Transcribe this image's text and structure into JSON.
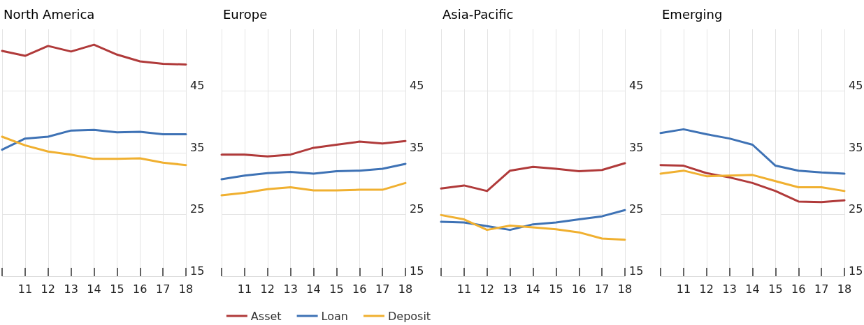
{
  "chart_data": [
    {
      "type": "line",
      "title": "North America",
      "categories": [
        null,
        "11",
        "12",
        "13",
        "14",
        "15",
        "16",
        "17",
        "18"
      ],
      "ylim": [
        15,
        55
      ],
      "yticks": [
        15,
        25,
        35,
        45
      ],
      "grid": true,
      "legend": false,
      "marker": "none",
      "line_style": "solid",
      "series": [
        {
          "color": "#b03a3a",
          "values": [
            51.5,
            50.7,
            52.3,
            51.4,
            52.5,
            50.9,
            49.8,
            49.4,
            49.3
          ]
        },
        {
          "color": "#3e72b5",
          "values": [
            35.5,
            37.3,
            37.6,
            38.6,
            38.7,
            38.3,
            38.4,
            38.0,
            38.0
          ]
        },
        {
          "color": "#f0b030",
          "values": [
            37.6,
            36.2,
            35.2,
            34.7,
            34.0,
            34.0,
            34.1,
            33.4,
            33.0
          ]
        }
      ]
    },
    {
      "type": "line",
      "title": "Europe",
      "categories": [
        null,
        "11",
        "12",
        "13",
        "14",
        "15",
        "16",
        "17",
        "18"
      ],
      "ylim": [
        15,
        55
      ],
      "yticks": [
        15,
        25,
        35,
        45
      ],
      "grid": true,
      "legend": "bottom",
      "marker": "none",
      "line_style": "solid",
      "series": [
        {
          "name": "Asset",
          "color": "#b03a3a",
          "values": [
            34.7,
            34.7,
            34.4,
            34.7,
            35.8,
            36.3,
            36.8,
            36.5,
            36.9
          ]
        },
        {
          "name": "Loan",
          "color": "#3e72b5",
          "values": [
            30.7,
            31.3,
            31.7,
            31.9,
            31.6,
            32.0,
            32.1,
            32.4,
            33.2
          ]
        },
        {
          "name": "Deposit",
          "color": "#f0b030",
          "values": [
            28.1,
            28.5,
            29.1,
            29.4,
            28.9,
            28.9,
            29.0,
            29.0,
            30.1
          ]
        }
      ]
    },
    {
      "type": "line",
      "title": "Asia-Pacific",
      "categories": [
        null,
        "11",
        "12",
        "13",
        "14",
        "15",
        "16",
        "17",
        "18"
      ],
      "ylim": [
        15,
        55
      ],
      "yticks": [
        15,
        25,
        35,
        45
      ],
      "grid": true,
      "legend": false,
      "marker": "none",
      "line_style": "solid",
      "series": [
        {
          "color": "#b03a3a",
          "values": [
            29.2,
            29.7,
            28.8,
            32.1,
            32.7,
            32.4,
            32.0,
            32.2,
            33.3
          ]
        },
        {
          "color": "#3e72b5",
          "values": [
            23.8,
            23.7,
            23.1,
            22.5,
            23.4,
            23.7,
            24.2,
            24.7,
            25.7
          ]
        },
        {
          "color": "#f0b030",
          "values": [
            24.9,
            24.2,
            22.5,
            23.2,
            22.9,
            22.6,
            22.1,
            21.1,
            20.9
          ]
        }
      ]
    },
    {
      "type": "line",
      "title": "Emerging",
      "categories": [
        null,
        "11",
        "12",
        "13",
        "14",
        "15",
        "16",
        "17",
        "18"
      ],
      "ylim": [
        15,
        55
      ],
      "yticks": [
        15,
        25,
        35,
        45
      ],
      "grid": true,
      "legend": false,
      "marker": "none",
      "line_style": "solid",
      "series": [
        {
          "color": "#b03a3a",
          "values": [
            33.0,
            32.9,
            31.7,
            31.0,
            30.1,
            28.8,
            27.1,
            27.0,
            27.3
          ]
        },
        {
          "color": "#3e72b5",
          "values": [
            38.2,
            38.8,
            38.0,
            37.3,
            36.3,
            32.9,
            32.1,
            31.8,
            31.6
          ]
        },
        {
          "color": "#f0b030",
          "values": [
            31.6,
            32.1,
            31.2,
            31.3,
            31.4,
            30.4,
            29.4,
            29.4,
            28.8
          ]
        }
      ]
    }
  ]
}
